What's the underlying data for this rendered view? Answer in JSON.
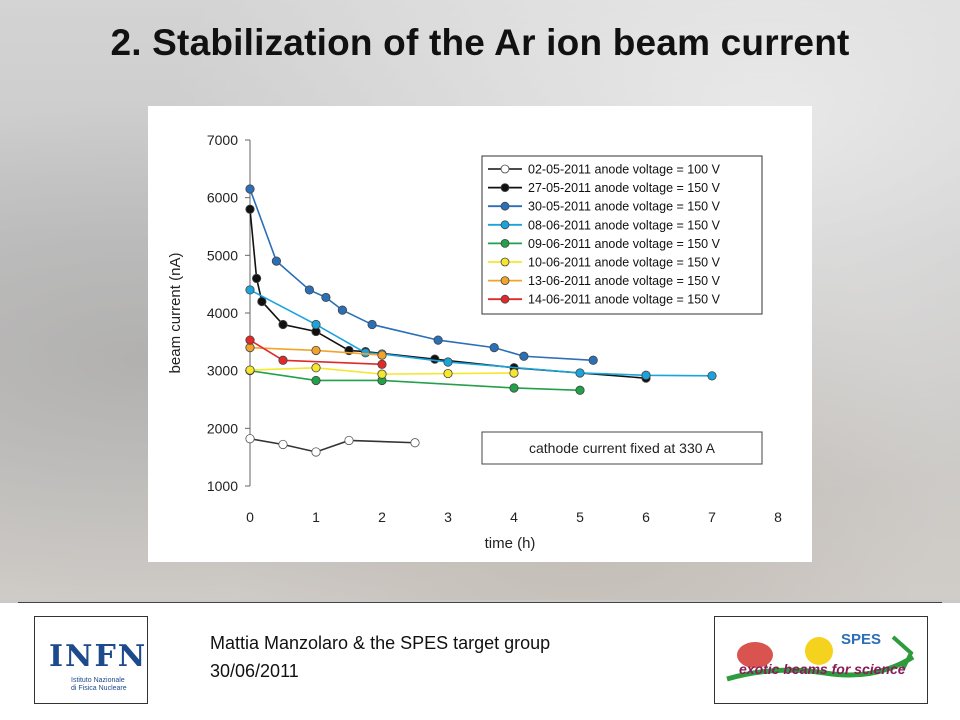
{
  "slide": {
    "title": "2. Stabilization of the Ar ion beam current",
    "author": "Mattia Manzolaro & the SPES target group",
    "date": "30/06/2011",
    "logo_left": {
      "name": "INFN",
      "subtitle_lines": [
        "Istituto Nazionale",
        "di Fisica Nucleare"
      ]
    },
    "logo_right": {
      "name": "SPES",
      "tagline": "exotic beams for science"
    }
  },
  "chart_data": {
    "type": "line",
    "title": "",
    "xlabel": "time (h)",
    "ylabel": "beam current (nA)",
    "xlim": [
      0,
      8
    ],
    "ylim": [
      1000,
      7000
    ],
    "xticks": [
      0,
      1,
      2,
      3,
      4,
      5,
      6,
      7,
      8
    ],
    "yticks": [
      1000,
      2000,
      3000,
      4000,
      5000,
      6000,
      7000
    ],
    "grid": false,
    "legend": "top-right",
    "annotation": "cathode current fixed at 330 A",
    "series": [
      {
        "name": "02-05-2011  anode voltage = 100 V",
        "color": "#333333",
        "fill": "#ffffff",
        "x": [
          0,
          0.5,
          1,
          1.5,
          2.5
        ],
        "y": [
          1820,
          1720,
          1590,
          1790,
          1750
        ]
      },
      {
        "name": "27-05-2011  anode voltage = 150 V",
        "color": "#111111",
        "fill": "#111111",
        "x": [
          0,
          0.1,
          0.18,
          0.5,
          1,
          1.5,
          1.75,
          2.8,
          4,
          6
        ],
        "y": [
          5800,
          4600,
          4200,
          3800,
          3680,
          3350,
          3330,
          3200,
          3050,
          2870
        ]
      },
      {
        "name": "30-05-2011  anode voltage = 150 V",
        "color": "#2a6fb8",
        "fill": "#2a6fb8",
        "x": [
          0,
          0.4,
          0.9,
          1.15,
          1.4,
          1.85,
          2.85,
          3.7,
          4.15,
          5.2
        ],
        "y": [
          6150,
          4900,
          4400,
          4270,
          4050,
          3800,
          3530,
          3400,
          3250,
          3180
        ]
      },
      {
        "name": "08-06-2011  anode voltage = 150 V",
        "color": "#1aa3dc",
        "fill": "#1aa3dc",
        "x": [
          0,
          1,
          1.75,
          2,
          3,
          5,
          6,
          7
        ],
        "y": [
          4400,
          3800,
          3310,
          3290,
          3150,
          2960,
          2920,
          2910
        ]
      },
      {
        "name": "09-06-2011  anode voltage = 150 V",
        "color": "#22a04a",
        "fill": "#22a04a",
        "x": [
          0,
          1,
          2,
          4,
          5
        ],
        "y": [
          3000,
          2830,
          2830,
          2700,
          2660
        ]
      },
      {
        "name": "10-06-2011  anode voltage = 150 V",
        "color": "#f5e62e",
        "fill": "#f5e62e",
        "x": [
          0,
          1,
          2,
          3,
          4
        ],
        "y": [
          3010,
          3050,
          2940,
          2950,
          2960
        ]
      },
      {
        "name": "13-06-2011  anode voltage = 150 V",
        "color": "#f2a42a",
        "fill": "#f2a42a",
        "x": [
          0,
          1,
          2
        ],
        "y": [
          3400,
          3350,
          3270
        ]
      },
      {
        "name": "14-06-2011  anode voltage = 150 V",
        "color": "#e02a2a",
        "fill": "#e02a2a",
        "x": [
          0,
          0.5,
          2
        ],
        "y": [
          3530,
          3180,
          3110
        ]
      }
    ]
  }
}
